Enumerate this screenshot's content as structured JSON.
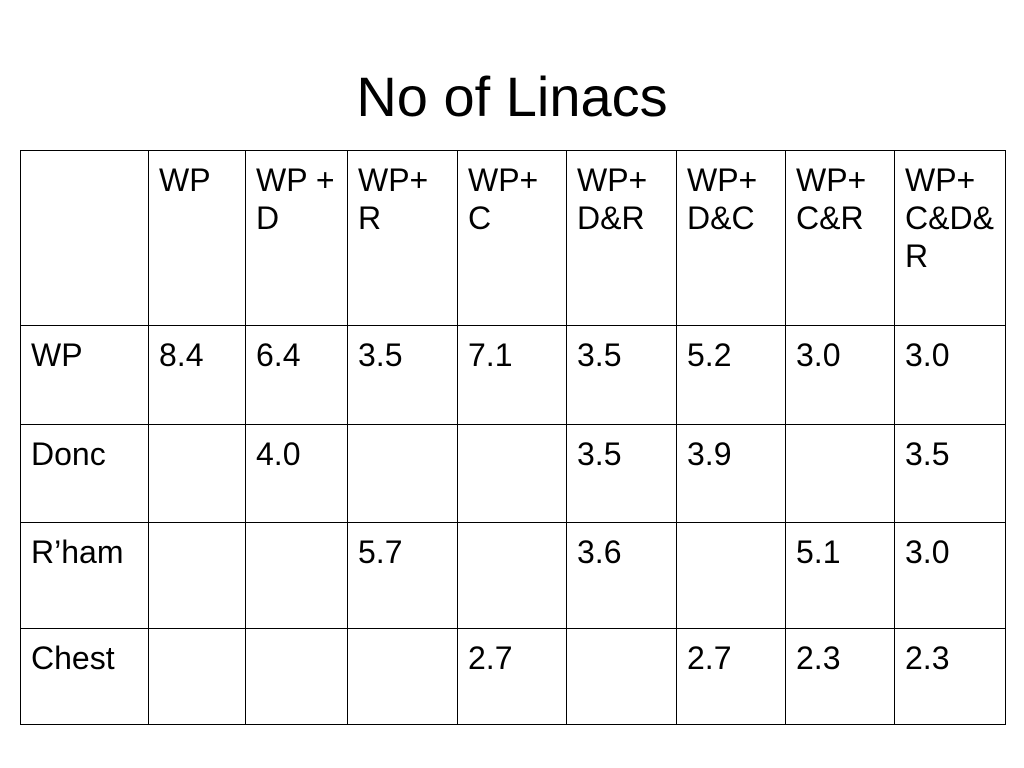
{
  "title": "No of Linacs",
  "table": {
    "header": [
      null,
      "WP",
      "WP + D",
      "WP+ R",
      "WP+ C",
      "WP+ D&R",
      "WP+ D&C",
      "WP+ C&R",
      "WP+ C&D&R"
    ],
    "rows": [
      [
        "WP",
        "8.4",
        "6.4",
        "3.5",
        "7.1",
        "3.5",
        "5.2",
        "3.0",
        "3.0"
      ],
      [
        "Donc",
        null,
        "4.0",
        null,
        null,
        "3.5",
        "3.9",
        null,
        "3.5"
      ],
      [
        "R’ham",
        null,
        null,
        "5.7",
        null,
        "3.6",
        null,
        "5.1",
        "3.0"
      ],
      [
        "Chest",
        null,
        null,
        null,
        "2.7",
        null,
        "2.7",
        "2.3",
        "2.3"
      ]
    ]
  }
}
